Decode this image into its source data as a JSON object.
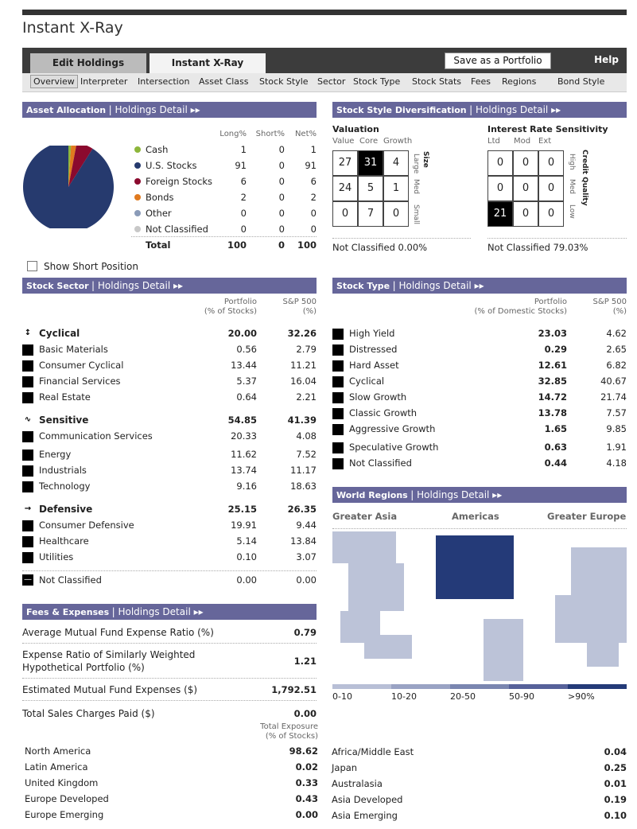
{
  "title": "Instant X-Ray",
  "tabs": {
    "edit": "Edit Holdings",
    "xray": "Instant X-Ray",
    "save": "Save as a Portfolio",
    "help": "Help"
  },
  "subnav": [
    "Overview",
    "Interpreter",
    "Intersection",
    "Asset Class",
    "Stock Style",
    "Sector",
    "Stock Type",
    "Stock Stats",
    "Fees",
    "Regions",
    "Bond Style"
  ],
  "asset_allocation": {
    "header": "Asset Allocation",
    "detail": "| Holdings Detail ▸▸",
    "cols": [
      "Long%",
      "Short%",
      "Net%"
    ],
    "rows": [
      {
        "label": "Cash",
        "long": "1",
        "short": "0",
        "net": "1",
        "color": "#8db63b"
      },
      {
        "label": "U.S. Stocks",
        "long": "91",
        "short": "0",
        "net": "91",
        "color": "#263a6e"
      },
      {
        "label": "Foreign Stocks",
        "long": "6",
        "short": "0",
        "net": "6",
        "color": "#8b0a2e"
      },
      {
        "label": "Bonds",
        "long": "2",
        "short": "0",
        "net": "2",
        "color": "#e07a1f"
      },
      {
        "label": "Other",
        "long": "0",
        "short": "0",
        "net": "0",
        "color": "#8a9bb8"
      },
      {
        "label": "Not Classified",
        "long": "0",
        "short": "0",
        "net": "0",
        "color": "#c8c8c8"
      }
    ],
    "total": {
      "label": "Total",
      "long": "100",
      "short": "0",
      "net": "100"
    },
    "show_short": "Show Short Position"
  },
  "style": {
    "header": "Stock Style Diversification",
    "detail": "| Holdings Detail ▸▸",
    "valuation": "Valuation",
    "val_cols": [
      "Value",
      "Core",
      "Growth"
    ],
    "size": "Size",
    "size_rows": [
      "Large",
      "Med",
      "Small"
    ],
    "grid": [
      "27",
      "31",
      "4",
      "24",
      "5",
      "1",
      "0",
      "7",
      "0"
    ],
    "rate": "Interest Rate Sensitivity",
    "rate_cols": [
      "Ltd",
      "Mod",
      "Ext"
    ],
    "credit": "Credit Quality",
    "credit_rows": [
      "High",
      "Med",
      "Low"
    ],
    "bgrid": [
      "0",
      "0",
      "0",
      "0",
      "0",
      "0",
      "21",
      "0",
      "0"
    ],
    "nc_left": "Not Classified 0.00%",
    "nc_right": "Not Classified 79.03%"
  },
  "sector": {
    "header": "Stock Sector",
    "detail": "| Holdings Detail ▸▸",
    "col1": "Portfolio",
    "col1b": "(% of Stocks)",
    "col2": "S&P 500",
    "col2b": "(%)",
    "groups": [
      {
        "label": "Cyclical",
        "p": "20.00",
        "s": "32.26",
        "items": [
          {
            "label": "Basic Materials",
            "p": "0.56",
            "s": "2.79"
          },
          {
            "label": "Consumer Cyclical",
            "p": "13.44",
            "s": "11.21"
          },
          {
            "label": "Financial Services",
            "p": "5.37",
            "s": "16.04"
          },
          {
            "label": "Real Estate",
            "p": "0.64",
            "s": "2.21"
          }
        ]
      },
      {
        "label": "Sensitive",
        "p": "54.85",
        "s": "41.39",
        "items": [
          {
            "label": "Communication Services",
            "p": "20.33",
            "s": "4.08"
          },
          {
            "label": "Energy",
            "p": "11.62",
            "s": "7.52"
          },
          {
            "label": "Industrials",
            "p": "13.74",
            "s": "11.17"
          },
          {
            "label": "Technology",
            "p": "9.16",
            "s": "18.63"
          }
        ]
      },
      {
        "label": "Defensive",
        "p": "25.15",
        "s": "26.35",
        "items": [
          {
            "label": "Consumer Defensive",
            "p": "19.91",
            "s": "9.44"
          },
          {
            "label": "Healthcare",
            "p": "5.14",
            "s": "13.84"
          },
          {
            "label": "Utilities",
            "p": "0.10",
            "s": "3.07"
          }
        ]
      }
    ],
    "nc": {
      "label": "Not Classified",
      "p": "0.00",
      "s": "0.00"
    }
  },
  "stocktype": {
    "header": "Stock Type",
    "detail": "| Holdings Detail ▸▸",
    "col1": "Portfolio",
    "col1b": "(% of Domestic Stocks)",
    "col2": "S&P 500",
    "col2b": "(%)",
    "rows": [
      {
        "label": "High Yield",
        "p": "23.03",
        "s": "4.62"
      },
      {
        "label": "Distressed",
        "p": "0.29",
        "s": "2.65"
      },
      {
        "label": "Hard Asset",
        "p": "12.61",
        "s": "6.82"
      },
      {
        "label": "Cyclical",
        "p": "32.85",
        "s": "40.67"
      },
      {
        "label": "Slow Growth",
        "p": "14.72",
        "s": "21.74"
      },
      {
        "label": "Classic Growth",
        "p": "13.78",
        "s": "7.57"
      },
      {
        "label": "Aggressive Growth",
        "p": "1.65",
        "s": "9.85"
      },
      {
        "label": "Speculative Growth",
        "p": "0.63",
        "s": "1.91"
      },
      {
        "label": "Not Classified",
        "p": "0.44",
        "s": "4.18"
      }
    ]
  },
  "fees": {
    "header": "Fees & Expenses",
    "detail": "| Holdings Detail ▸▸",
    "rows": [
      {
        "label": "Average Mutual Fund Expense Ratio (%)",
        "v": "0.79"
      },
      {
        "label": "Expense Ratio of Similarly Weighted",
        "label2": "Hypothetical Portfolio (%)",
        "v": "1.21"
      },
      {
        "label": "Estimated Mutual Fund Expenses ($)",
        "v": "1,792.51"
      },
      {
        "label": "Total Sales Charges Paid ($)",
        "v": "0.00"
      }
    ]
  },
  "regions": {
    "header": "World Regions",
    "detail": "| Holdings Detail ▸▸",
    "cols": [
      "Greater Asia",
      "Americas",
      "Greater Europe"
    ],
    "legend": [
      "0-10",
      "10-20",
      "20-50",
      "50-90",
      ">90%"
    ],
    "legend_colors": [
      "#b8bfd6",
      "#9aa3c4",
      "#7a86b0",
      "#56619a",
      "#243a78"
    ],
    "exposure": "Total Exposure",
    "exposure2": "(% of Stocks)",
    "left": [
      {
        "label": "North America",
        "v": "98.62"
      },
      {
        "label": "Latin America",
        "v": "0.02"
      },
      {
        "label": "United Kingdom",
        "v": "0.33"
      },
      {
        "label": "Europe Developed",
        "v": "0.43"
      },
      {
        "label": "Europe Emerging",
        "v": "0.00"
      }
    ],
    "right": [
      {
        "label": "Africa/Middle East",
        "v": "0.04"
      },
      {
        "label": "Japan",
        "v": "0.25"
      },
      {
        "label": "Australasia",
        "v": "0.01"
      },
      {
        "label": "Asia Developed",
        "v": "0.19"
      },
      {
        "label": "Asia Emerging",
        "v": "0.10"
      }
    ]
  }
}
